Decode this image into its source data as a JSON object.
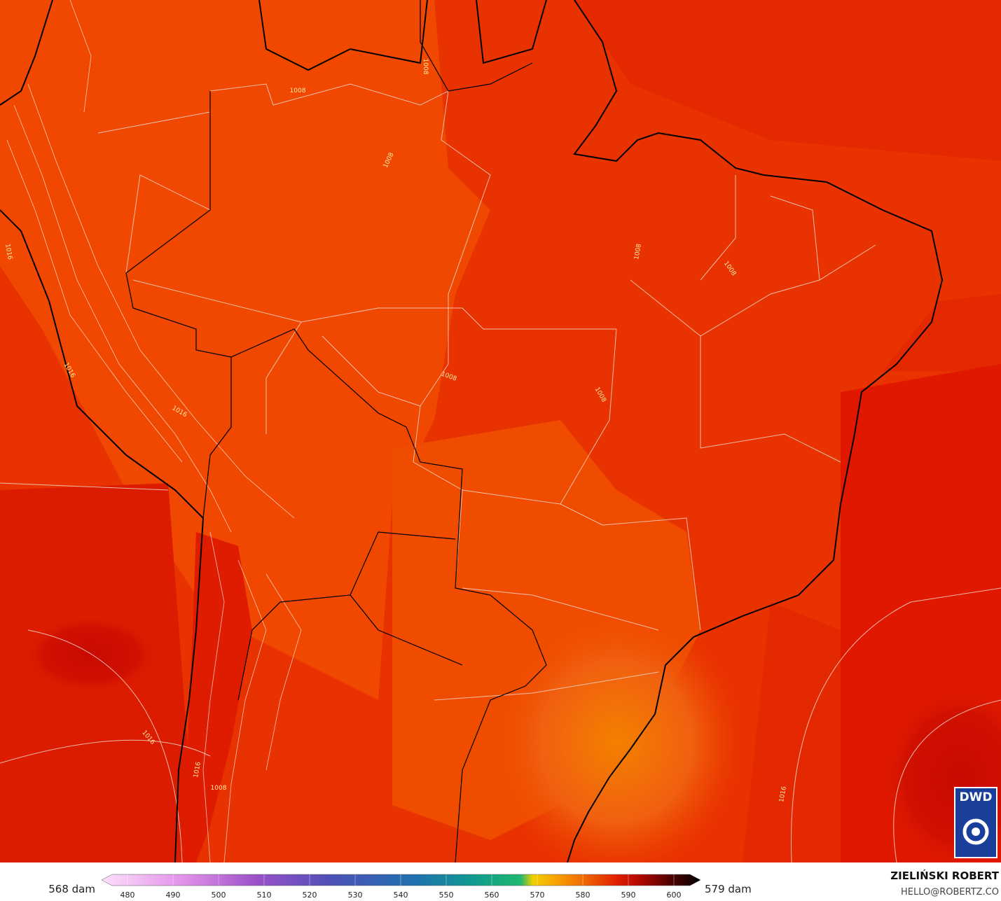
{
  "map": {
    "contour_labels": [
      "1008",
      "1008",
      "1008",
      "1008",
      "1008",
      "1008",
      "1008",
      "1016",
      "1016",
      "1016",
      "1016",
      "1016",
      "1008",
      "1016"
    ],
    "logo": "DWD"
  },
  "colorbar": {
    "left_label": "568 dam",
    "right_label": "579 dam",
    "ticks": [
      480,
      490,
      500,
      510,
      520,
      530,
      540,
      550,
      560,
      570,
      580,
      590,
      600
    ]
  },
  "credit": {
    "name": "ZIELIŃSKI ROBERT",
    "contact": "HELLO@ROBERTZ.CO"
  }
}
